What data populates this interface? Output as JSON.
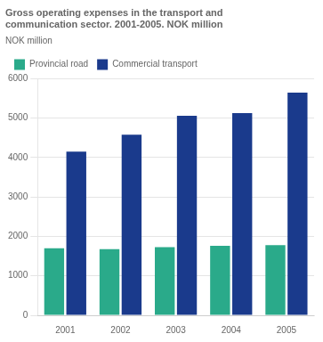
{
  "chart_data": {
    "type": "bar",
    "title": "Gross operating expenses in the transport and\ncommunication sector. 2001-2005. NOK million",
    "ylabel": "NOK million",
    "categories": [
      "2001",
      "2002",
      "2003",
      "2004",
      "2005"
    ],
    "series": [
      {
        "name": "Provincial road",
        "color": "#2aaa8a",
        "values": [
          1700,
          1680,
          1730,
          1760,
          1780
        ]
      },
      {
        "name": "Commercial transport",
        "color": "#1a3a8c",
        "values": [
          4150,
          4580,
          5060,
          5130,
          5650
        ]
      }
    ],
    "ylim": [
      0,
      6000
    ],
    "yticks": [
      0,
      1000,
      2000,
      3000,
      4000,
      5000,
      6000
    ],
    "grid": true,
    "legend": "upper left"
  }
}
